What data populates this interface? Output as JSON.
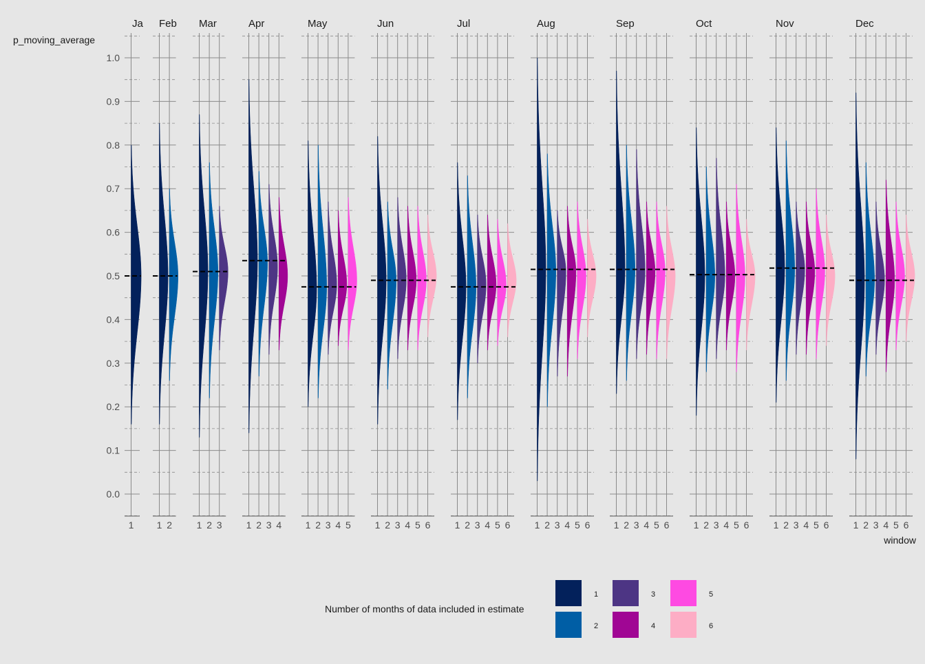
{
  "chart_data": {
    "type": "violin",
    "ylabel": "p_moving_average",
    "xlabel": "window",
    "ylim": [
      -0.05,
      1.05
    ],
    "y_ticks": [
      0.0,
      0.1,
      0.2,
      0.3,
      0.4,
      0.5,
      0.6,
      0.7,
      0.8,
      0.9,
      1.0
    ],
    "y_tick_labels": [
      "0.0",
      "0.1",
      "0.2",
      "0.3",
      "0.4",
      "0.5",
      "0.6",
      "0.7",
      "0.8",
      "0.9",
      "1.0"
    ],
    "grid": true,
    "legend": {
      "title": "Number of months of data included in estimate",
      "placement": "bottom",
      "items": [
        {
          "label": "1",
          "color": "#03215b"
        },
        {
          "label": "2",
          "color": "#005ea5"
        },
        {
          "label": "3",
          "color": "#4d3584"
        },
        {
          "label": "4",
          "color": "#a00694"
        },
        {
          "label": "5",
          "color": "#fe4ae2"
        },
        {
          "label": "6",
          "color": "#fdadc5"
        }
      ]
    },
    "facets": [
      {
        "label": "Ja",
        "reference_line": 0.5,
        "windows": [
          {
            "window": "1",
            "center": 0.5,
            "min": 0.16,
            "max": 0.8
          }
        ]
      },
      {
        "label": "Feb",
        "reference_line": 0.5,
        "windows": [
          {
            "window": "1",
            "center": 0.5,
            "min": 0.16,
            "max": 0.85
          },
          {
            "window": "2",
            "center": 0.5,
            "min": 0.26,
            "max": 0.7
          }
        ]
      },
      {
        "label": "Mar",
        "reference_line": 0.51,
        "windows": [
          {
            "window": "1",
            "center": 0.51,
            "min": 0.13,
            "max": 0.87
          },
          {
            "window": "2",
            "center": 0.51,
            "min": 0.22,
            "max": 0.76
          },
          {
            "window": "3",
            "center": 0.51,
            "min": 0.33,
            "max": 0.66
          }
        ]
      },
      {
        "label": "Apr",
        "reference_line": 0.535,
        "windows": [
          {
            "window": "1",
            "center": 0.535,
            "min": 0.14,
            "max": 0.95
          },
          {
            "window": "2",
            "center": 0.53,
            "min": 0.27,
            "max": 0.74
          },
          {
            "window": "3",
            "center": 0.52,
            "min": 0.32,
            "max": 0.71
          },
          {
            "window": "4",
            "center": 0.5,
            "min": 0.33,
            "max": 0.68
          }
        ]
      },
      {
        "label": "May",
        "reference_line": 0.475,
        "windows": [
          {
            "window": "1",
            "center": 0.47,
            "min": 0.2,
            "max": 0.81
          },
          {
            "window": "2",
            "center": 0.475,
            "min": 0.22,
            "max": 0.8
          },
          {
            "window": "3",
            "center": 0.48,
            "min": 0.32,
            "max": 0.67
          },
          {
            "window": "4",
            "center": 0.48,
            "min": 0.34,
            "max": 0.65
          },
          {
            "window": "5",
            "center": 0.49,
            "min": 0.33,
            "max": 0.68
          }
        ]
      },
      {
        "label": "Jun",
        "reference_line": 0.49,
        "windows": [
          {
            "window": "1",
            "center": 0.49,
            "min": 0.16,
            "max": 0.82
          },
          {
            "window": "2",
            "center": 0.49,
            "min": 0.24,
            "max": 0.67
          },
          {
            "window": "3",
            "center": 0.49,
            "min": 0.31,
            "max": 0.68
          },
          {
            "window": "4",
            "center": 0.49,
            "min": 0.33,
            "max": 0.66
          },
          {
            "window": "5",
            "center": 0.49,
            "min": 0.33,
            "max": 0.66
          },
          {
            "window": "6",
            "center": 0.5,
            "min": 0.36,
            "max": 0.64
          }
        ]
      },
      {
        "label": "Jul",
        "reference_line": 0.475,
        "windows": [
          {
            "window": "1",
            "center": 0.475,
            "min": 0.17,
            "max": 0.76
          },
          {
            "window": "2",
            "center": 0.475,
            "min": 0.22,
            "max": 0.73
          },
          {
            "window": "3",
            "center": 0.48,
            "min": 0.3,
            "max": 0.64
          },
          {
            "window": "4",
            "center": 0.48,
            "min": 0.33,
            "max": 0.64
          },
          {
            "window": "5",
            "center": 0.48,
            "min": 0.34,
            "max": 0.63
          },
          {
            "window": "6",
            "center": 0.49,
            "min": 0.36,
            "max": 0.62
          }
        ]
      },
      {
        "label": "Aug",
        "reference_line": 0.515,
        "windows": [
          {
            "window": "1",
            "center": 0.515,
            "min": 0.03,
            "max": 1.0
          },
          {
            "window": "2",
            "center": 0.51,
            "min": 0.2,
            "max": 0.78
          },
          {
            "window": "3",
            "center": 0.51,
            "min": 0.27,
            "max": 0.65
          },
          {
            "window": "4",
            "center": 0.51,
            "min": 0.27,
            "max": 0.66
          },
          {
            "window": "5",
            "center": 0.5,
            "min": 0.31,
            "max": 0.67
          },
          {
            "window": "6",
            "center": 0.5,
            "min": 0.36,
            "max": 0.63
          }
        ]
      },
      {
        "label": "Sep",
        "reference_line": 0.515,
        "windows": [
          {
            "window": "1",
            "center": 0.515,
            "min": 0.23,
            "max": 0.97
          },
          {
            "window": "2",
            "center": 0.515,
            "min": 0.26,
            "max": 0.8
          },
          {
            "window": "3",
            "center": 0.51,
            "min": 0.31,
            "max": 0.79
          },
          {
            "window": "4",
            "center": 0.51,
            "min": 0.32,
            "max": 0.67
          },
          {
            "window": "5",
            "center": 0.51,
            "min": 0.31,
            "max": 0.67
          },
          {
            "window": "6",
            "center": 0.5,
            "min": 0.31,
            "max": 0.66
          }
        ]
      },
      {
        "label": "Oct",
        "reference_line": 0.503,
        "windows": [
          {
            "window": "1",
            "center": 0.5,
            "min": 0.18,
            "max": 0.84
          },
          {
            "window": "2",
            "center": 0.5,
            "min": 0.28,
            "max": 0.75
          },
          {
            "window": "3",
            "center": 0.5,
            "min": 0.31,
            "max": 0.77
          },
          {
            "window": "4",
            "center": 0.5,
            "min": 0.33,
            "max": 0.67
          },
          {
            "window": "5",
            "center": 0.5,
            "min": 0.28,
            "max": 0.71
          },
          {
            "window": "6",
            "center": 0.5,
            "min": 0.33,
            "max": 0.63
          }
        ]
      },
      {
        "label": "Nov",
        "reference_line": 0.518,
        "windows": [
          {
            "window": "1",
            "center": 0.518,
            "min": 0.21,
            "max": 0.84
          },
          {
            "window": "2",
            "center": 0.515,
            "min": 0.26,
            "max": 0.81
          },
          {
            "window": "3",
            "center": 0.515,
            "min": 0.32,
            "max": 0.67
          },
          {
            "window": "4",
            "center": 0.51,
            "min": 0.32,
            "max": 0.67
          },
          {
            "window": "5",
            "center": 0.51,
            "min": 0.31,
            "max": 0.7
          },
          {
            "window": "6",
            "center": 0.5,
            "min": 0.34,
            "max": 0.64
          }
        ]
      },
      {
        "label": "Dec",
        "reference_line": 0.49,
        "windows": [
          {
            "window": "1",
            "center": 0.49,
            "min": 0.08,
            "max": 0.92
          },
          {
            "window": "2",
            "center": 0.49,
            "min": 0.27,
            "max": 0.76
          },
          {
            "window": "3",
            "center": 0.49,
            "min": 0.32,
            "max": 0.67
          },
          {
            "window": "4",
            "center": 0.49,
            "min": 0.28,
            "max": 0.72
          },
          {
            "window": "5",
            "center": 0.5,
            "min": 0.33,
            "max": 0.67
          },
          {
            "window": "6",
            "center": 0.5,
            "min": 0.35,
            "max": 0.64
          }
        ]
      }
    ]
  }
}
